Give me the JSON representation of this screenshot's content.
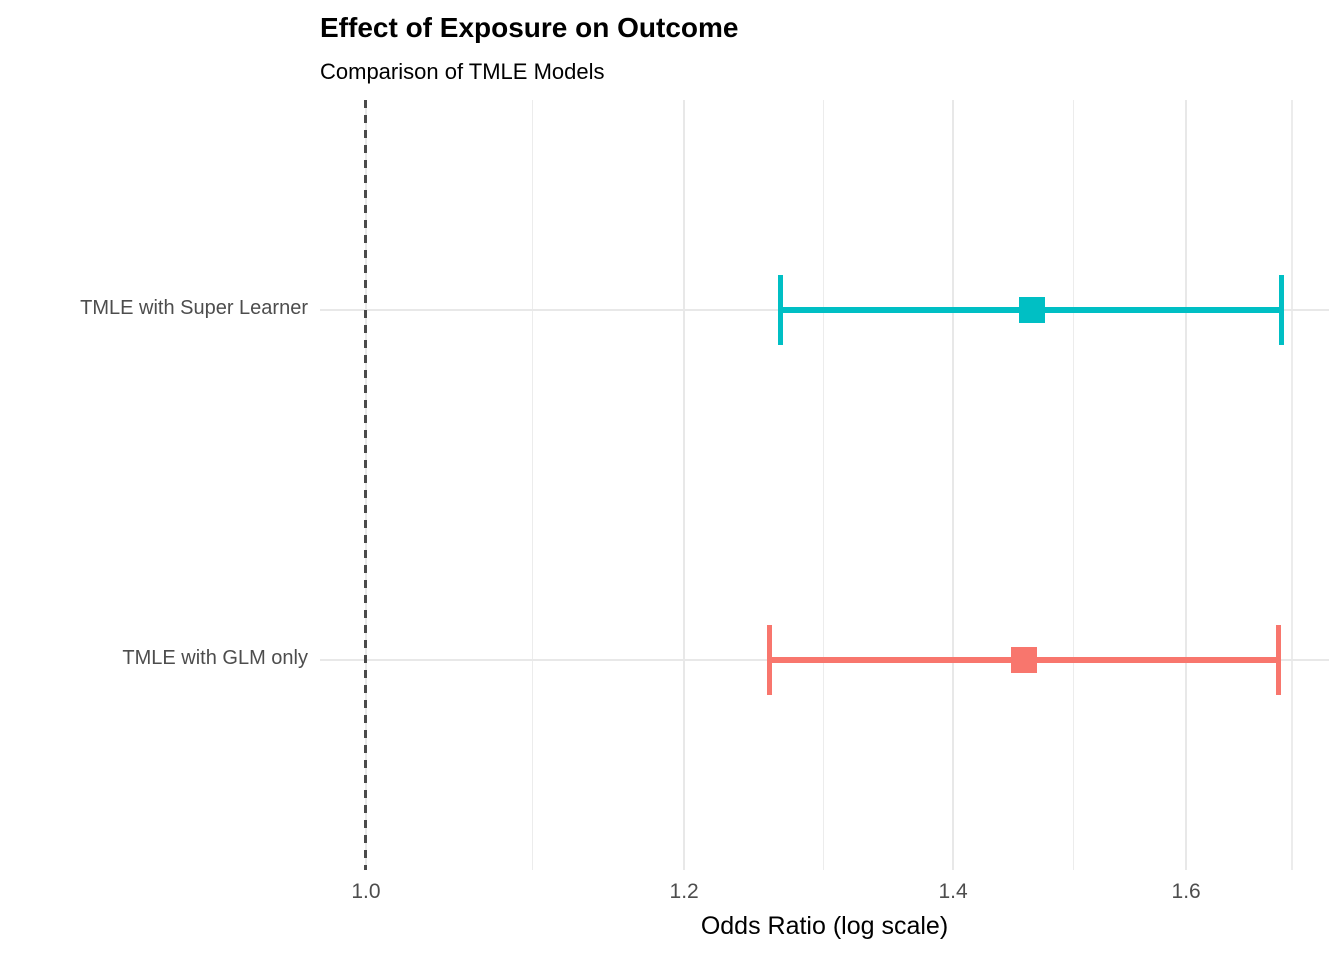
{
  "title": "Effect of Exposure on Outcome",
  "subtitle": "Comparison of TMLE Models",
  "chart_data": {
    "type": "forest-errorbar",
    "orientation": "horizontal",
    "title": "Effect of Exposure on Outcome",
    "subtitle": "Comparison of TMLE Models",
    "xlabel": "Odds Ratio (log scale)",
    "ylabel": "",
    "x_scale": "log",
    "x_domain": [
      0.974,
      1.7365
    ],
    "x_major_ticks": [
      1.0,
      1.2,
      1.4,
      1.6
    ],
    "x_tick_labels": [
      "1.0",
      "1.2",
      "1.4",
      "1.6"
    ],
    "x_minor_gridlines": [
      1.1,
      1.3,
      1.5,
      1.7
    ],
    "reference_line": {
      "x": 1.0,
      "style": "dashed",
      "color": "#4a4a4a"
    },
    "grid": true,
    "legend": "none",
    "background_color": "#ffffff",
    "gridline_color": "#e8e8e8",
    "axis_text_color": "#4d4d4d",
    "series": [
      {
        "label": "TMLE with Super Learner",
        "or": 1.465,
        "ci_low": 1.268,
        "ci_high": 1.69,
        "color": "#00BFC4",
        "marker": "square"
      },
      {
        "label": "TMLE with GLM only",
        "or": 1.458,
        "ci_low": 1.26,
        "ci_high": 1.687,
        "color": "#F8766D",
        "marker": "square"
      }
    ]
  }
}
